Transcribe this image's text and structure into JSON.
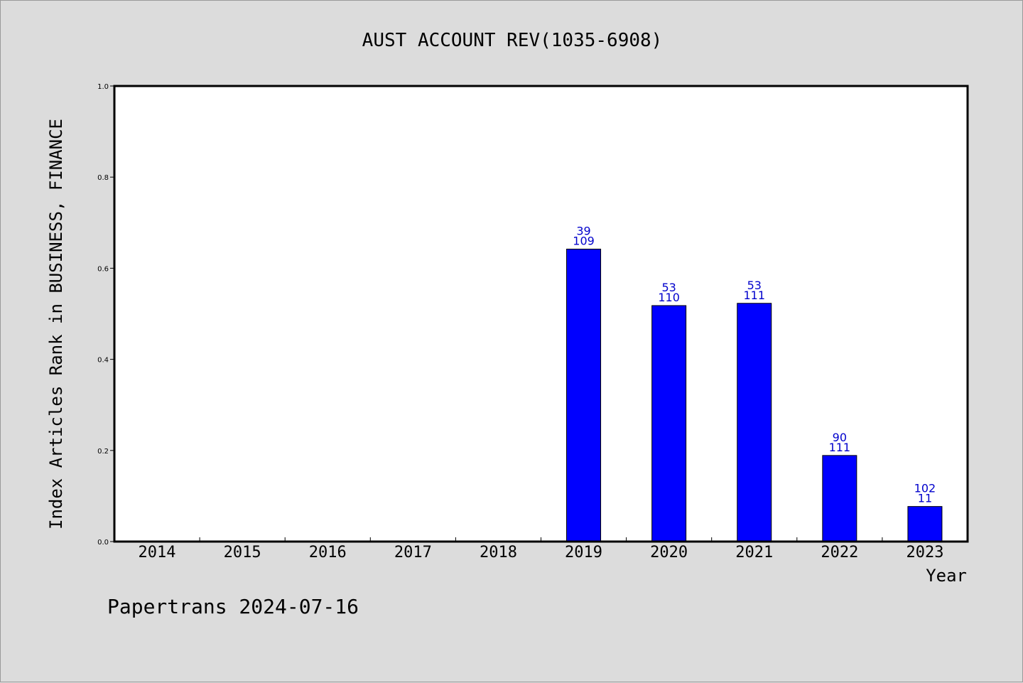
{
  "chart_data": {
    "type": "bar",
    "title": "AUST ACCOUNT REV(1035-6908)",
    "xlabel": "Year",
    "ylabel": "Index Articles Rank in BUSINESS, FINANCE",
    "ylim": [
      0.0,
      1.0
    ],
    "yticks": [
      "0.0",
      "0.2",
      "0.4",
      "0.6",
      "0.8",
      "1.0"
    ],
    "categories": [
      "2014",
      "2015",
      "2016",
      "2017",
      "2018",
      "2019",
      "2020",
      "2021",
      "2022",
      "2023"
    ],
    "values": [
      null,
      null,
      null,
      null,
      null,
      0.642,
      0.518,
      0.523,
      0.189,
      0.077
    ],
    "label_top": [
      "",
      "",
      "",
      "",
      "",
      "39",
      "53",
      "53",
      "90",
      "102"
    ],
    "label_bottom": [
      "",
      "",
      "",
      "",
      "",
      "109",
      "110",
      "111",
      "111",
      "11"
    ],
    "bar_color": "#0000ff",
    "label_color": "#0000cc",
    "grid": false
  },
  "footer": "Papertrans 2024-07-16"
}
